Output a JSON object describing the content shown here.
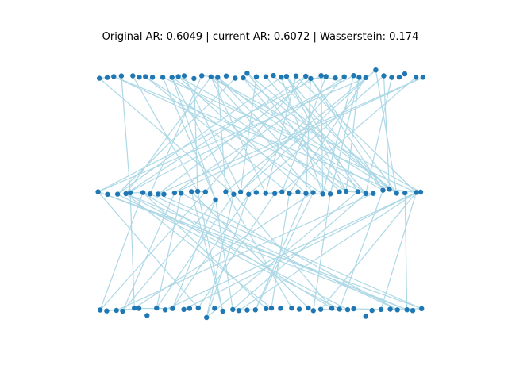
{
  "title": "Original AR: 0.6049 | current AR: 0.6072 | Wasserstein: 0.174",
  "colors": {
    "node": "#1f77b4",
    "edge": "#add8e6",
    "background": "#ffffff",
    "text": "#000000"
  },
  "graph": {
    "layers": [
      {
        "name": "top",
        "node_count": 42
      },
      {
        "name": "middle",
        "node_count": 40
      },
      {
        "name": "bottom",
        "node_count": 40
      }
    ],
    "edge_count": 130
  }
}
